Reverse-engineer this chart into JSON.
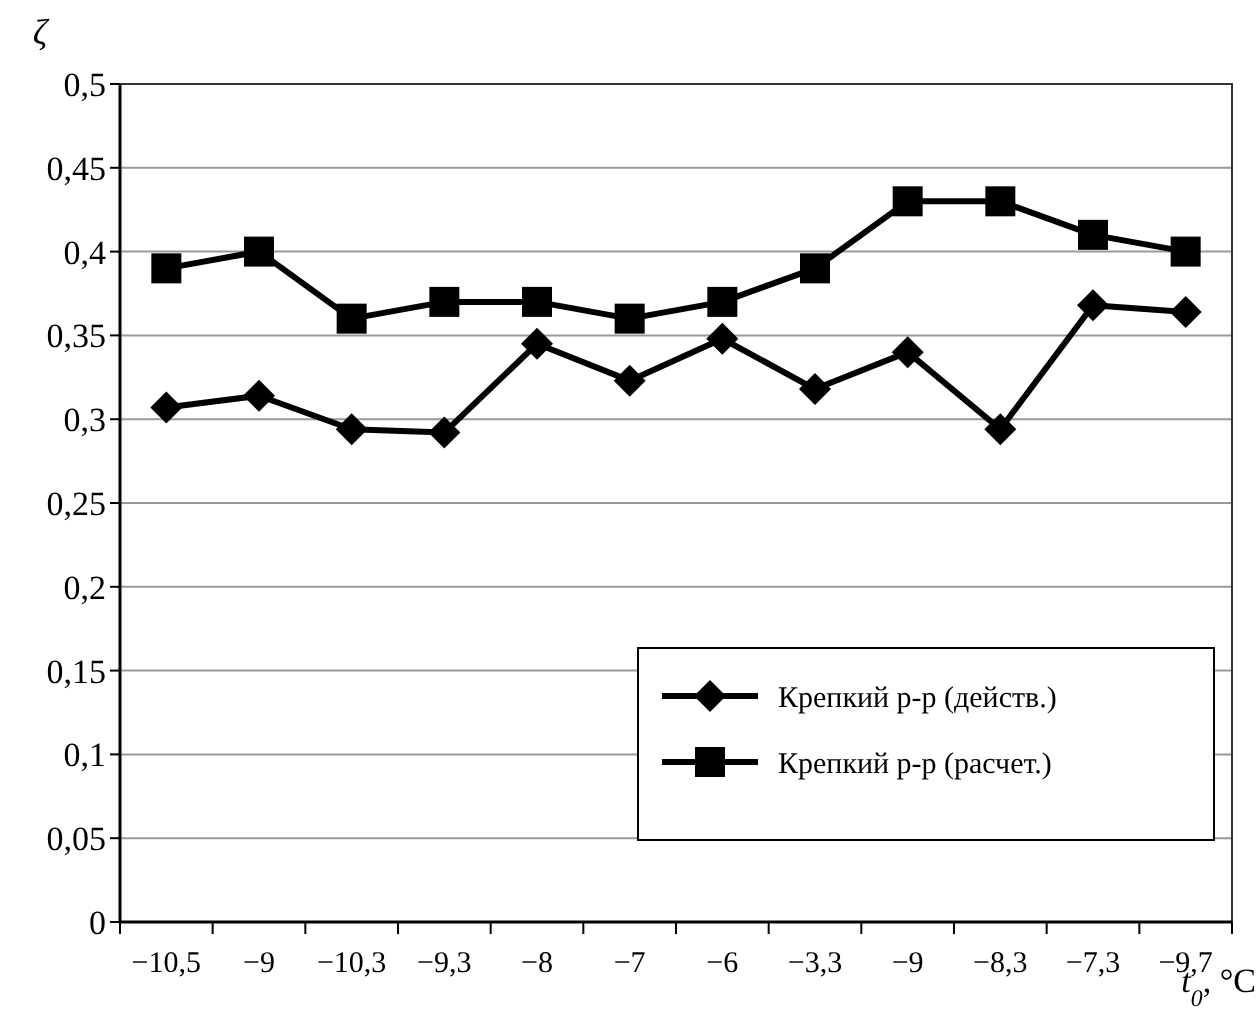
{
  "chart_data": {
    "type": "line",
    "xlabel": "t$_{0}$, °C",
    "ylabel": "ζ",
    "categories": [
      "−10,5",
      "−9",
      "−10,3",
      "−9,3",
      "−8",
      "−7",
      "−6",
      "−3,3",
      "−9",
      "−8,3",
      "−7,3",
      "−9,7"
    ],
    "series": [
      {
        "name": "Крепкий р-р (действ.)",
        "color": "#000000",
        "marker": "diamond",
        "values": [
          0.307,
          0.314,
          0.294,
          0.292,
          0.345,
          0.323,
          0.348,
          0.318,
          0.34,
          0.294,
          0.368,
          0.364
        ]
      },
      {
        "name": "Крепкий р-р (расчет.)",
        "color": "#000000",
        "marker": "square",
        "values": [
          0.39,
          0.4,
          0.36,
          0.37,
          0.37,
          0.36,
          0.37,
          0.39,
          0.43,
          0.43,
          0.41,
          0.4
        ]
      }
    ],
    "ylim": [
      0,
      0.5
    ],
    "yticks": [
      0,
      {
        "value": 0.05,
        "label": "0,05"
      },
      {
        "value": 0.1,
        "label": "0,1"
      },
      {
        "value": 0.15,
        "label": "0,15"
      },
      {
        "value": 0.2,
        "label": "0,2"
      },
      {
        "value": 0.25,
        "label": "0,25"
      },
      {
        "value": 0.3,
        "label": "0,3"
      },
      {
        "value": 0.35,
        "label": "0,35"
      },
      {
        "value": 0.4,
        "label": "0,4"
      },
      {
        "value": 0.45,
        "label": "0,45"
      },
      {
        "value": 0.5,
        "label": "0,5"
      }
    ],
    "grid": "y",
    "legend": "bottom right",
    "line_style": "solid"
  }
}
